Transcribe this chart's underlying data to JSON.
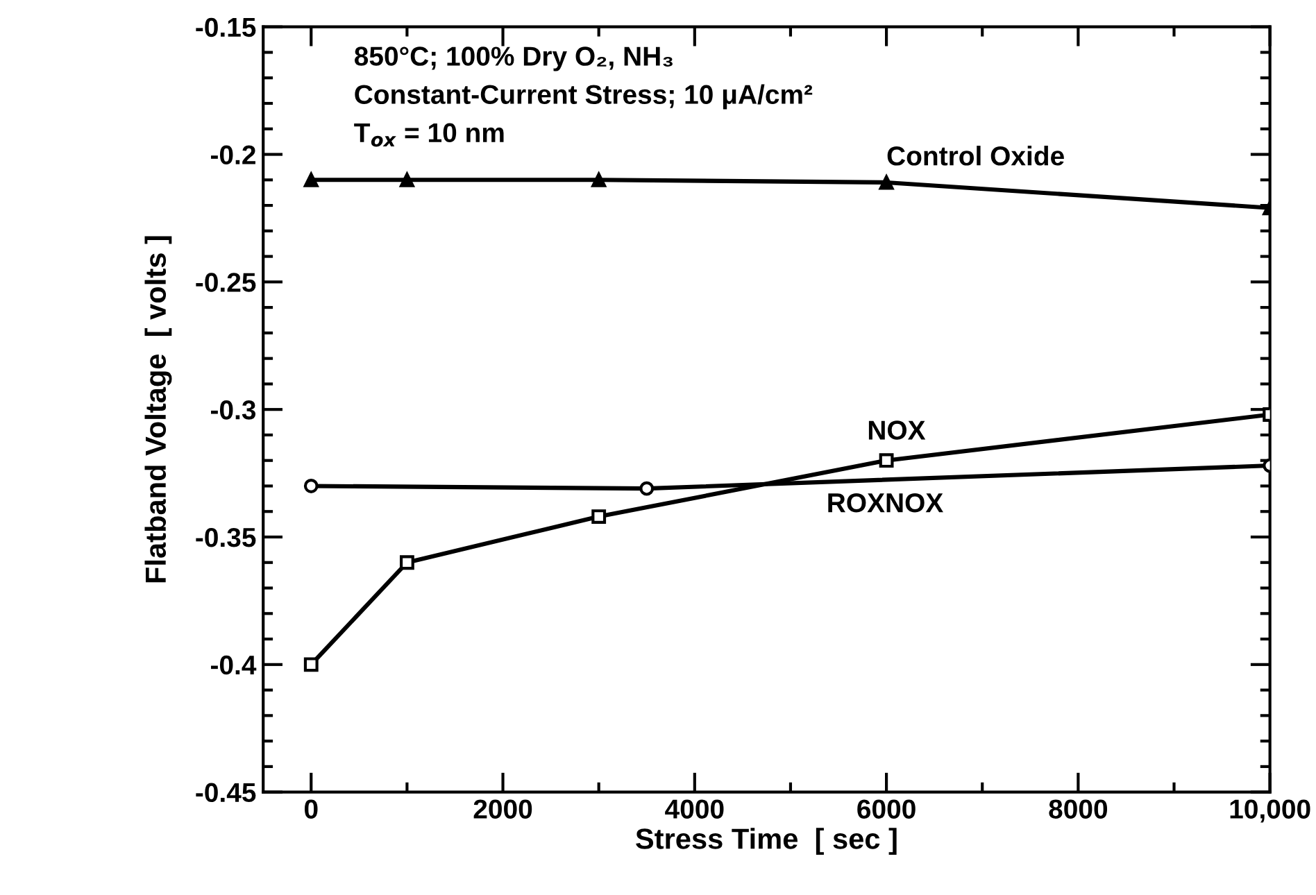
{
  "chart_data": {
    "type": "line",
    "xlabel": "Stress Time  [ sec ]",
    "ylabel": "Flatband Voltage  [ volts ]",
    "annotations": [
      "850°C; 100% Dry O₂, NH₃",
      "Constant-Current Stress; 10 μA/cm²",
      "T$_{ox}$ = 10 nm"
    ],
    "series": [
      {
        "name": "Control Oxide",
        "color": "#000000",
        "marker": "triangle",
        "x": [
          0,
          1000,
          3000,
          6000,
          10000
        ],
        "values": [
          -0.21,
          -0.21,
          -0.21,
          -0.211,
          -0.221
        ]
      },
      {
        "name": "NOX",
        "color": "#000000",
        "marker": "square",
        "x": [
          0,
          1000,
          3000,
          6000,
          10000
        ],
        "values": [
          -0.4,
          -0.36,
          -0.342,
          -0.32,
          -0.302
        ]
      },
      {
        "name": "ROXNOX",
        "color": "#000000",
        "marker": "circle",
        "x": [
          0,
          3500,
          10000
        ],
        "values": [
          -0.33,
          -0.331,
          -0.322
        ]
      }
    ],
    "xlim": [
      -500,
      10000
    ],
    "xticks": [
      0,
      2000,
      4000,
      6000,
      8000,
      {
        "value": 10000,
        "label": "10,000"
      }
    ],
    "ylim": [
      -0.45,
      -0.15
    ],
    "yticks": [
      -0.45,
      -0.4,
      -0.35,
      -0.3,
      -0.25,
      -0.2,
      -0.15
    ],
    "grid": false,
    "legend": false,
    "line_style": "solid"
  }
}
